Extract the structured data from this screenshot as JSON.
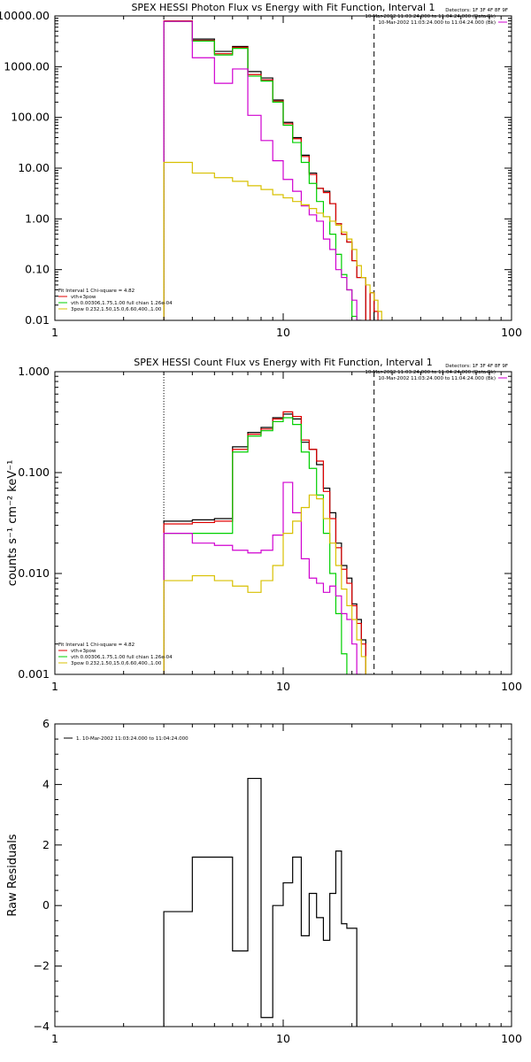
{
  "colors": {
    "black": "#000000",
    "red": "#e00000",
    "green": "#00d000",
    "magenta": "#d000d0",
    "yellow": "#d8c000"
  },
  "chart_data": [
    {
      "type": "line",
      "title": "SPEX HESSI Photon Flux vs Energy with Fit Function, Interval 1",
      "xscale": "log",
      "yscale": "log",
      "xlim": [
        1,
        100
      ],
      "ylim": [
        0.01,
        10000
      ],
      "xticks": [
        {
          "v": 1,
          "label": "1"
        },
        {
          "v": 10,
          "label": "10"
        },
        {
          "v": 100,
          "label": "100"
        }
      ],
      "yticks": [
        {
          "v": 10000,
          "label": "10000.00"
        },
        {
          "v": 1000,
          "label": "1000.00"
        },
        {
          "v": 100,
          "label": "100.00"
        },
        {
          "v": 10,
          "label": "10.00"
        },
        {
          "v": 1,
          "label": "1.00"
        },
        {
          "v": 0.1,
          "label": "0.10"
        },
        {
          "v": 0.01,
          "label": "0.01"
        }
      ],
      "edges": [
        3,
        4,
        5,
        6,
        7,
        8,
        9,
        10,
        11,
        12,
        13,
        14,
        15,
        16,
        17,
        18,
        19,
        20,
        21,
        22,
        23,
        24,
        25,
        26,
        27,
        28,
        29,
        30
      ],
      "series": [
        {
          "key": "data",
          "color": "#000000",
          "values": [
            8000,
            3500,
            2000,
            2500,
            800,
            600,
            220,
            80,
            40,
            18,
            8,
            4,
            3.5,
            2,
            0.8,
            0.5,
            0.35,
            0.15,
            0.07,
            0.07,
            null,
            0.035,
            null,
            null,
            null,
            null,
            null
          ]
        },
        {
          "key": "total",
          "color": "#e00000",
          "values": [
            8000,
            3300,
            1800,
            2400,
            700,
            550,
            210,
            75,
            38,
            17,
            7.5,
            4,
            3.3,
            2,
            0.8,
            0.5,
            0.35,
            0.15,
            0.07,
            0.07,
            null,
            0.035,
            0.015,
            null,
            null,
            null,
            null
          ]
        },
        {
          "key": "vth",
          "color": "#00d000",
          "values": [
            7800,
            3200,
            1700,
            2300,
            650,
            520,
            200,
            70,
            32,
            13,
            5,
            2.2,
            1.1,
            0.5,
            0.2,
            0.08,
            0.04,
            0.012,
            0.003,
            null,
            null,
            null,
            null,
            null,
            null,
            null,
            null
          ]
        },
        {
          "key": "3pow",
          "color": "#d000d0",
          "values": [
            7800,
            1500,
            470,
            900,
            110,
            35,
            14,
            6,
            3.5,
            1.8,
            1.2,
            0.9,
            0.4,
            0.25,
            0.1,
            0.07,
            0.04,
            0.025,
            0.008,
            null,
            null,
            null,
            null,
            null,
            null,
            null,
            null
          ]
        },
        {
          "key": "3pow-y",
          "color": "#d8c000",
          "values": [
            13,
            8,
            6.5,
            5.5,
            4.5,
            3.8,
            3.0,
            2.6,
            2.2,
            1.9,
            1.6,
            1.3,
            1.1,
            0.9,
            0.75,
            0.55,
            0.4,
            0.25,
            0.12,
            0.07,
            0.05,
            0.035,
            0.025,
            0.015,
            null,
            null,
            null
          ]
        }
      ],
      "vlines": [
        {
          "x": 3,
          "style": "dotted"
        },
        {
          "x": 25,
          "style": "dashed"
        }
      ],
      "legend_top": {
        "header": "Detectors: 1F 3F 4F 8F 9F",
        "entries": [
          {
            "text": "10-Mar-2002 11:03:24.000 to 11:04:24.000 (Data-Bk)",
            "color": "#000000"
          },
          {
            "text": "10-Mar-2002 11:03:24.000 to 11:04:24.000 (Bk)",
            "color": "#d000d0"
          }
        ]
      },
      "legend_bottom": {
        "header": "Fit Interval 1   Chi-square = 4.82",
        "entries": [
          {
            "text": "vth+3pow",
            "color": "#e00000"
          },
          {
            "text": "vth 0.00306,1.75,1.00   full chian 1.26e-04",
            "color": "#00d000"
          },
          {
            "text": "3pow 0.232,1.50,15.0,6.60,400.,1.00",
            "color": "#d8c000"
          }
        ]
      }
    },
    {
      "type": "line",
      "title": "SPEX HESSI Count Flux vs Energy with Fit Function, Interval 1",
      "ylabel": "counts s⁻¹ cm⁻² keV⁻¹",
      "xscale": "log",
      "yscale": "log",
      "xlim": [
        1,
        100
      ],
      "ylim": [
        0.001,
        1
      ],
      "xticks": [
        {
          "v": 1,
          "label": "1"
        },
        {
          "v": 10,
          "label": "10"
        },
        {
          "v": 100,
          "label": "100"
        }
      ],
      "yticks": [
        {
          "v": 1,
          "label": "1.000"
        },
        {
          "v": 0.1,
          "label": "0.100"
        },
        {
          "v": 0.01,
          "label": "0.010"
        },
        {
          "v": 0.001,
          "label": "0.001"
        }
      ],
      "edges": [
        3,
        4,
        5,
        6,
        7,
        8,
        9,
        10,
        11,
        12,
        13,
        14,
        15,
        16,
        17,
        18,
        19,
        20,
        21,
        22,
        23,
        24,
        25,
        26,
        27,
        28,
        29,
        30
      ],
      "series": [
        {
          "key": "data",
          "color": "#000000",
          "values": [
            0.033,
            0.034,
            0.035,
            0.18,
            0.25,
            0.28,
            0.35,
            0.38,
            0.34,
            0.2,
            0.17,
            0.12,
            0.07,
            0.04,
            0.02,
            0.012,
            0.009,
            0.005,
            0.0035,
            0.0022,
            null,
            null,
            null,
            null,
            null,
            null,
            null
          ]
        },
        {
          "key": "total",
          "color": "#e00000",
          "values": [
            0.031,
            0.032,
            0.033,
            0.17,
            0.24,
            0.27,
            0.34,
            0.4,
            0.36,
            0.21,
            0.17,
            0.13,
            0.065,
            0.035,
            0.018,
            0.011,
            0.008,
            0.0048,
            0.0032,
            0.002,
            null,
            null,
            null,
            null,
            null,
            null,
            null
          ]
        },
        {
          "key": "vth",
          "color": "#00d000",
          "values": [
            0.025,
            0.025,
            0.025,
            0.16,
            0.23,
            0.26,
            0.32,
            0.35,
            0.3,
            0.16,
            0.11,
            0.06,
            0.025,
            0.01,
            0.004,
            0.0016,
            null,
            null,
            null,
            null,
            null,
            null,
            null,
            null,
            null,
            null,
            null
          ]
        },
        {
          "key": "3pow",
          "color": "#d000d0",
          "values": [
            0.025,
            0.02,
            0.019,
            0.017,
            0.016,
            0.017,
            0.024,
            0.08,
            0.04,
            0.014,
            0.009,
            0.008,
            0.0065,
            0.0075,
            0.006,
            0.004,
            0.0035,
            0.002,
            0.001,
            null,
            null,
            null,
            null,
            null,
            null,
            null,
            null
          ]
        },
        {
          "key": "3pow-y",
          "color": "#d8c000",
          "values": [
            0.0085,
            0.0095,
            0.0085,
            0.0075,
            0.0065,
            0.0085,
            0.012,
            0.025,
            0.033,
            0.045,
            0.06,
            0.055,
            0.035,
            0.02,
            0.012,
            0.007,
            0.0048,
            0.0035,
            0.0022,
            0.0015,
            null,
            null,
            null,
            null,
            null,
            null,
            null
          ]
        }
      ],
      "vlines": [
        {
          "x": 3,
          "style": "dotted"
        },
        {
          "x": 25,
          "style": "dashed"
        }
      ],
      "legend_top": {
        "header": "Detectors: 1F 3F 4F 8F 9F",
        "entries": [
          {
            "text": "10-Mar-2002 11:03:24.000 to 11:04:24.000 (Data-Bk)",
            "color": "#000000"
          },
          {
            "text": "10-Mar-2002 11:03:24.000 to 11:04:24.000 (Bk)",
            "color": "#d000d0"
          }
        ]
      },
      "legend_bottom": {
        "header": "Fit Interval 1   Chi-square = 4.82",
        "entries": [
          {
            "text": "vth+3pow",
            "color": "#e00000"
          },
          {
            "text": "vth 0.00306,1.75,1.00   full chian 1.26e-04",
            "color": "#00d000"
          },
          {
            "text": "3pow 0.232,1.50,15.0,6.60,400.,1.00",
            "color": "#d8c000"
          }
        ]
      }
    },
    {
      "type": "line",
      "title": "",
      "ylabel": "Raw Residuals",
      "xscale": "log",
      "yscale": "linear",
      "xlim": [
        1,
        100
      ],
      "ylim": [
        -4,
        6
      ],
      "xticks": [
        {
          "v": 1,
          "label": "1"
        },
        {
          "v": 10,
          "label": "10"
        },
        {
          "v": 100,
          "label": "100"
        }
      ],
      "yticks": [
        {
          "v": 6,
          "label": "6"
        },
        {
          "v": 4,
          "label": "4"
        },
        {
          "v": 2,
          "label": "2"
        },
        {
          "v": 0,
          "label": "0"
        },
        {
          "v": -2,
          "label": "−2"
        },
        {
          "v": -4,
          "label": "−4"
        }
      ],
      "edges": [
        3,
        4,
        5,
        6,
        7,
        8,
        9,
        10,
        11,
        12,
        13,
        14,
        15,
        16,
        17,
        18,
        19,
        20,
        21,
        22,
        23,
        24,
        25
      ],
      "series": [
        {
          "key": "residuals",
          "color": "#000000",
          "values": [
            -0.2,
            1.6,
            1.6,
            -1.5,
            4.2,
            -3.7,
            0.0,
            0.75,
            1.6,
            -1.0,
            0.4,
            -0.4,
            -1.15,
            0.4,
            1.8,
            -0.6,
            -0.75,
            -0.75,
            null,
            null,
            null,
            null
          ]
        }
      ],
      "vlines": [],
      "legend_top": {
        "header": "",
        "entries": [
          {
            "text": "1. 10-Mar-2002 11:03:24.000 to 11:04:24.000",
            "color": "#000000"
          }
        ]
      },
      "legend_bottom": {
        "header": "",
        "entries": []
      }
    }
  ]
}
